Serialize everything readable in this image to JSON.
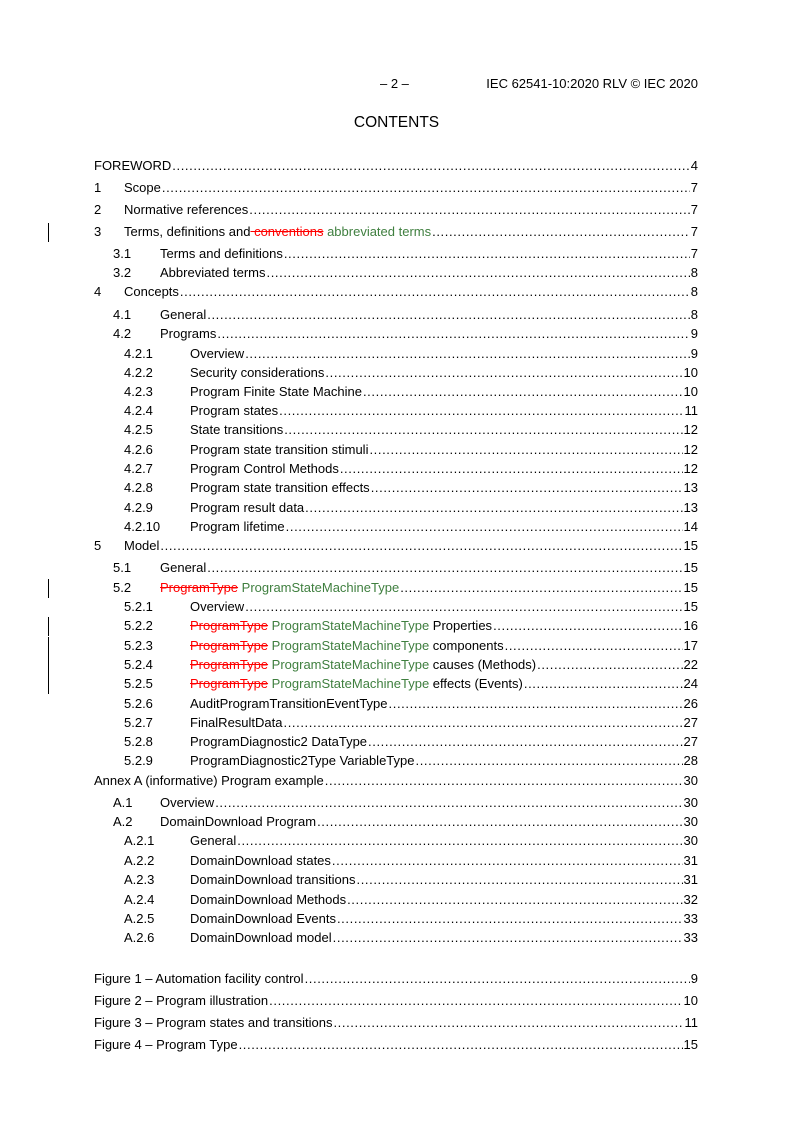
{
  "header": {
    "page_number": "– 2 –",
    "document_id": "IEC 62541-10:2020 RLV © IEC 2020"
  },
  "title": "CONTENTS",
  "colors": {
    "deleted": "#ff0000",
    "inserted": "#3f7f3f"
  },
  "toc": [
    {
      "level": 0,
      "num": "",
      "parts": [
        {
          "t": "FOREWORD",
          "s": "n"
        }
      ],
      "page": "4"
    },
    {
      "level": 1,
      "num": "1",
      "parts": [
        {
          "t": "Scope",
          "s": "n"
        }
      ],
      "page": "7"
    },
    {
      "level": 1,
      "num": "2",
      "parts": [
        {
          "t": "Normative references ",
          "s": "n"
        }
      ],
      "page": "7"
    },
    {
      "level": 1,
      "num": "3",
      "parts": [
        {
          "t": "Terms, definitions and",
          "s": "n"
        },
        {
          "t": " conventions",
          "s": "d"
        },
        {
          "t": " abbreviated terms",
          "s": "i"
        }
      ],
      "page": "7",
      "changed": true
    },
    {
      "level": 2,
      "num": "3.1",
      "parts": [
        {
          "t": "Terms and definitions",
          "s": "n"
        }
      ],
      "page": "7"
    },
    {
      "level": 2,
      "num": "3.2",
      "parts": [
        {
          "t": "Abbreviated terms",
          "s": "n"
        }
      ],
      "page": "8"
    },
    {
      "level": 1,
      "num": "4",
      "parts": [
        {
          "t": "Concepts",
          "s": "n"
        }
      ],
      "page": "8"
    },
    {
      "level": 2,
      "num": "4.1",
      "parts": [
        {
          "t": "General",
          "s": "n"
        }
      ],
      "page": "8"
    },
    {
      "level": 2,
      "num": "4.2",
      "parts": [
        {
          "t": "Programs",
          "s": "n"
        }
      ],
      "page": "9"
    },
    {
      "level": 3,
      "num": "4.2.1",
      "parts": [
        {
          "t": "Overview ",
          "s": "n"
        }
      ],
      "page": "9"
    },
    {
      "level": 3,
      "num": "4.2.2",
      "parts": [
        {
          "t": "Security considerations",
          "s": "n"
        }
      ],
      "page": "10"
    },
    {
      "level": 3,
      "num": "4.2.3",
      "parts": [
        {
          "t": "Program Finite State Machine",
          "s": "n"
        }
      ],
      "page": "10"
    },
    {
      "level": 3,
      "num": "4.2.4",
      "parts": [
        {
          "t": "Program states ",
          "s": "n"
        }
      ],
      "page": "11"
    },
    {
      "level": 3,
      "num": "4.2.5",
      "parts": [
        {
          "t": "State transitions ",
          "s": "n"
        }
      ],
      "page": "12"
    },
    {
      "level": 3,
      "num": "4.2.6",
      "parts": [
        {
          "t": "Program state transition stimuli",
          "s": "n"
        }
      ],
      "page": "12"
    },
    {
      "level": 3,
      "num": "4.2.7",
      "parts": [
        {
          "t": "Program Control Methods ",
          "s": "n"
        }
      ],
      "page": "12"
    },
    {
      "level": 3,
      "num": "4.2.8",
      "parts": [
        {
          "t": "Program state transition effects ",
          "s": "n"
        }
      ],
      "page": "13"
    },
    {
      "level": 3,
      "num": "4.2.9",
      "parts": [
        {
          "t": "Program result data ",
          "s": "n"
        }
      ],
      "page": "13"
    },
    {
      "level": 3,
      "num": "4.2.10",
      "parts": [
        {
          "t": "Program lifetime ",
          "s": "n"
        }
      ],
      "page": "14"
    },
    {
      "level": 1,
      "num": "5",
      "parts": [
        {
          "t": "Model ",
          "s": "n"
        }
      ],
      "page": "15"
    },
    {
      "level": 2,
      "num": "5.1",
      "parts": [
        {
          "t": "General",
          "s": "n"
        }
      ],
      "page": "15"
    },
    {
      "level": 2,
      "num": "5.2",
      "parts": [
        {
          "t": "ProgramType",
          "s": "d"
        },
        {
          "t": " ProgramStateMachineType ",
          "s": "i"
        }
      ],
      "page": "15",
      "changed": true
    },
    {
      "level": 3,
      "num": "5.2.1",
      "parts": [
        {
          "t": "Overview ",
          "s": "n"
        }
      ],
      "page": "15"
    },
    {
      "level": 3,
      "num": "5.2.2",
      "parts": [
        {
          "t": "ProgramType",
          "s": "d"
        },
        {
          "t": " ProgramStateMachineType",
          "s": "i"
        },
        {
          "t": " Properties",
          "s": "n"
        }
      ],
      "page": "16",
      "changed": true
    },
    {
      "level": 3,
      "num": "5.2.3",
      "parts": [
        {
          "t": "ProgramType",
          "s": "d"
        },
        {
          "t": " ProgramStateMachineType",
          "s": "i"
        },
        {
          "t": " components ",
          "s": "n"
        }
      ],
      "page": "17",
      "changed": true
    },
    {
      "level": 3,
      "num": "5.2.4",
      "parts": [
        {
          "t": "ProgramType",
          "s": "d"
        },
        {
          "t": " ProgramStateMachineType",
          "s": "i"
        },
        {
          "t": " causes (Methods) ",
          "s": "n"
        }
      ],
      "page": "22",
      "changed": true
    },
    {
      "level": 3,
      "num": "5.2.5",
      "parts": [
        {
          "t": "ProgramType",
          "s": "d"
        },
        {
          "t": " ProgramStateMachineType",
          "s": "i"
        },
        {
          "t": " effects (Events) ",
          "s": "n"
        }
      ],
      "page": "24",
      "changed": true
    },
    {
      "level": 3,
      "num": "5.2.6",
      "parts": [
        {
          "t": "AuditProgramTransitionEventType",
          "s": "n"
        }
      ],
      "page": "26"
    },
    {
      "level": 3,
      "num": "5.2.7",
      "parts": [
        {
          "t": "FinalResultData",
          "s": "n"
        }
      ],
      "page": "27"
    },
    {
      "level": 3,
      "num": "5.2.8",
      "parts": [
        {
          "t": "ProgramDiagnostic2 DataType ",
          "s": "n"
        }
      ],
      "page": "27"
    },
    {
      "level": 3,
      "num": "5.2.9",
      "parts": [
        {
          "t": "ProgramDiagnostic2Type VariableType ",
          "s": "n"
        }
      ],
      "page": "28"
    },
    {
      "level": 0,
      "num": "",
      "parts": [
        {
          "t": "Annex A (informative)  Program example ",
          "s": "n"
        }
      ],
      "page": "30"
    },
    {
      "level": 2,
      "num": "A.1",
      "parts": [
        {
          "t": "Overview",
          "s": "n"
        }
      ],
      "page": "30"
    },
    {
      "level": 2,
      "num": "A.2",
      "parts": [
        {
          "t": "DomainDownload Program",
          "s": "n"
        }
      ],
      "page": "30"
    },
    {
      "level": 3,
      "num": "A.2.1",
      "parts": [
        {
          "t": "General ",
          "s": "n"
        }
      ],
      "page": "30"
    },
    {
      "level": 3,
      "num": "A.2.2",
      "parts": [
        {
          "t": "DomainDownload states ",
          "s": "n"
        }
      ],
      "page": "31"
    },
    {
      "level": 3,
      "num": "A.2.3",
      "parts": [
        {
          "t": "DomainDownload transitions",
          "s": "n"
        }
      ],
      "page": "31"
    },
    {
      "level": 3,
      "num": "A.2.4",
      "parts": [
        {
          "t": "DomainDownload Methods ",
          "s": "n"
        }
      ],
      "page": "32"
    },
    {
      "level": 3,
      "num": "A.2.5",
      "parts": [
        {
          "t": "DomainDownload Events",
          "s": "n"
        }
      ],
      "page": "33"
    },
    {
      "level": 3,
      "num": "A.2.6",
      "parts": [
        {
          "t": "DomainDownload model ",
          "s": "n"
        }
      ],
      "page": "33"
    },
    {
      "level": 0,
      "num": "",
      "parts": [
        {
          "t": "Figure 1 – Automation facility control ",
          "s": "n"
        }
      ],
      "page": "9"
    },
    {
      "level": 0,
      "num": "",
      "parts": [
        {
          "t": "Figure 2 – Program illustration",
          "s": "n"
        }
      ],
      "page": "10"
    },
    {
      "level": 0,
      "num": "",
      "parts": [
        {
          "t": "Figure 3 – Program states and transitions",
          "s": "n"
        }
      ],
      "page": "11"
    },
    {
      "level": 0,
      "num": "",
      "parts": [
        {
          "t": "Figure 4 – Program Type ",
          "s": "n"
        }
      ],
      "page": "15"
    }
  ]
}
